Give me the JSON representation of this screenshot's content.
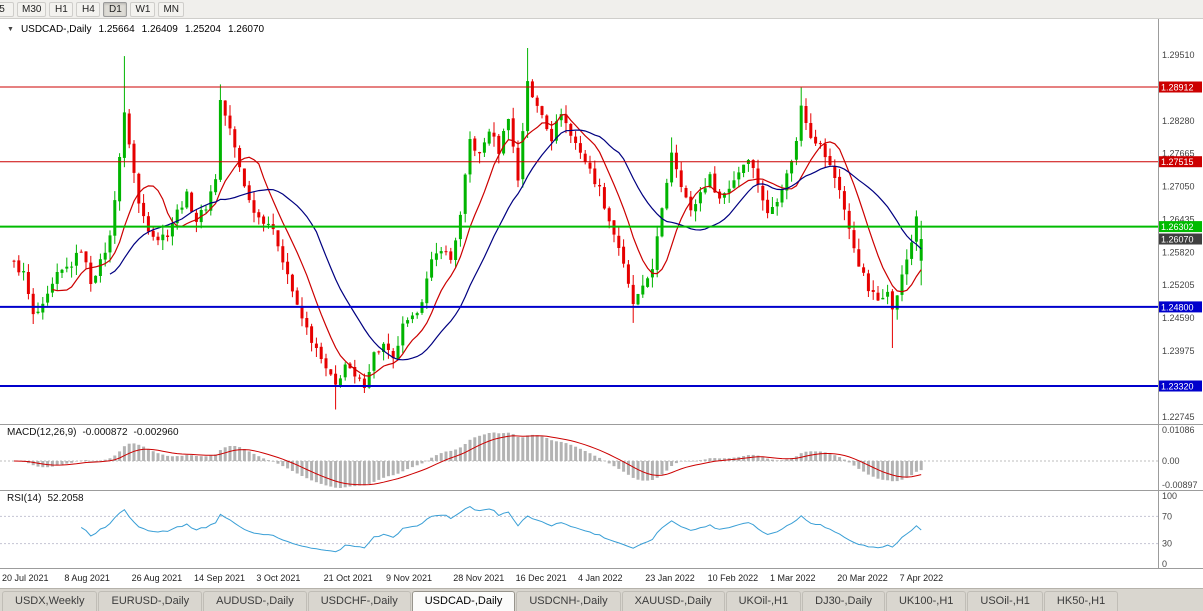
{
  "toolbar": {
    "timeframes": [
      {
        "label": "5",
        "active": false,
        "partial": true
      },
      {
        "label": "M30",
        "active": false
      },
      {
        "label": "H1",
        "active": false
      },
      {
        "label": "H4",
        "active": false
      },
      {
        "label": "D1",
        "active": true
      },
      {
        "label": "W1",
        "active": false
      },
      {
        "label": "MN",
        "active": false
      }
    ]
  },
  "chart_data": {
    "type": "candlestick",
    "symbol_title": "USDCAD-,Daily",
    "title_icon": "▼",
    "ohlc_display": {
      "open": "1.25664",
      "high": "1.26409",
      "low": "1.25204",
      "close": "1.26070"
    },
    "ohlc_current": {
      "open": 1.25664,
      "high": 1.26409,
      "low": 1.25204,
      "close": 1.2607
    },
    "num_bars": 190,
    "y_ticks": [
      1.2951,
      1.2828,
      1.27665,
      1.2705,
      1.26435,
      1.2582,
      1.25205,
      1.2459,
      1.23975,
      1.2336,
      1.22745
    ],
    "levels": [
      {
        "price": 1.28912,
        "label": "1.28912",
        "color": "#cc0000",
        "width": 1
      },
      {
        "price": 1.27515,
        "label": "1.27515",
        "color": "#cc0000",
        "width": 1
      },
      {
        "price": 1.26302,
        "label": "1.26302",
        "color": "#00bb00",
        "width": 2
      },
      {
        "price": 1.248,
        "label": "1.24800",
        "color": "#0000cc",
        "width": 2
      },
      {
        "price": 1.2332,
        "label": "1.23320",
        "color": "#0000cc",
        "width": 2
      }
    ],
    "current_price_label": {
      "value": 1.2607,
      "label": "1.26070",
      "bg": "#3f3f3f"
    },
    "x_labels": [
      {
        "text": "20 Jul 2021",
        "day": 0
      },
      {
        "text": "8 Aug 2021",
        "day": 13
      },
      {
        "text": "26 Aug 2021",
        "day": 27
      },
      {
        "text": "14 Sep 2021",
        "day": 40
      },
      {
        "text": "3 Oct 2021",
        "day": 53
      },
      {
        "text": "21 Oct 2021",
        "day": 67
      },
      {
        "text": "9 Nov 2021",
        "day": 80
      },
      {
        "text": "28 Nov 2021",
        "day": 94
      },
      {
        "text": "16 Dec 2021",
        "day": 107
      },
      {
        "text": "4 Jan 2022",
        "day": 120
      },
      {
        "text": "23 Jan 2022",
        "day": 134
      },
      {
        "text": "10 Feb 2022",
        "day": 147
      },
      {
        "text": "1 Mar 2022",
        "day": 160
      },
      {
        "text": "20 Mar 2022",
        "day": 174
      },
      {
        "text": "7 Apr 2022",
        "day": 187
      }
    ],
    "close_path_anchors": [
      [
        0,
        1.256
      ],
      [
        2,
        1.2542
      ],
      [
        4,
        1.2462
      ],
      [
        6,
        1.2478
      ],
      [
        9,
        1.2538
      ],
      [
        12,
        1.256
      ],
      [
        14,
        1.2588
      ],
      [
        16,
        1.2528
      ],
      [
        18,
        1.2562
      ],
      [
        20,
        1.261
      ],
      [
        22,
        1.2762
      ],
      [
        23,
        1.2838
      ],
      [
        24,
        1.2788
      ],
      [
        26,
        1.2672
      ],
      [
        28,
        1.2628
      ],
      [
        30,
        1.2608
      ],
      [
        32,
        1.2618
      ],
      [
        34,
        1.2658
      ],
      [
        36,
        1.2688
      ],
      [
        38,
        1.2642
      ],
      [
        40,
        1.2668
      ],
      [
        42,
        1.2722
      ],
      [
        43,
        1.2866
      ],
      [
        45,
        1.281
      ],
      [
        47,
        1.2742
      ],
      [
        49,
        1.2678
      ],
      [
        51,
        1.2648
      ],
      [
        53,
        1.2638
      ],
      [
        55,
        1.2598
      ],
      [
        57,
        1.2542
      ],
      [
        59,
        1.2478
      ],
      [
        61,
        1.2438
      ],
      [
        63,
        1.2398
      ],
      [
        65,
        1.2362
      ],
      [
        67,
        1.2332
      ],
      [
        69,
        1.2372
      ],
      [
        71,
        1.2346
      ],
      [
        73,
        1.2336
      ],
      [
        75,
        1.2392
      ],
      [
        77,
        1.2408
      ],
      [
        79,
        1.2378
      ],
      [
        81,
        1.2442
      ],
      [
        83,
        1.2456
      ],
      [
        85,
        1.2496
      ],
      [
        87,
        1.2562
      ],
      [
        89,
        1.2592
      ],
      [
        91,
        1.2568
      ],
      [
        93,
        1.2648
      ],
      [
        95,
        1.2792
      ],
      [
        97,
        1.2762
      ],
      [
        99,
        1.2812
      ],
      [
        101,
        1.2772
      ],
      [
        103,
        1.2838
      ],
      [
        105,
        1.2718
      ],
      [
        107,
        1.2905
      ],
      [
        108,
        1.2868
      ],
      [
        110,
        1.2842
      ],
      [
        112,
        1.2796
      ],
      [
        114,
        1.2846
      ],
      [
        116,
        1.28
      ],
      [
        118,
        1.2772
      ],
      [
        120,
        1.2734
      ],
      [
        122,
        1.27
      ],
      [
        124,
        1.2642
      ],
      [
        126,
        1.2592
      ],
      [
        128,
        1.2518
      ],
      [
        129,
        1.2486
      ],
      [
        131,
        1.2512
      ],
      [
        133,
        1.2556
      ],
      [
        135,
        1.2658
      ],
      [
        137,
        1.2772
      ],
      [
        139,
        1.2712
      ],
      [
        141,
        1.2656
      ],
      [
        143,
        1.2694
      ],
      [
        145,
        1.2722
      ],
      [
        147,
        1.2682
      ],
      [
        149,
        1.2704
      ],
      [
        151,
        1.2734
      ],
      [
        153,
        1.2762
      ],
      [
        155,
        1.2712
      ],
      [
        157,
        1.2652
      ],
      [
        159,
        1.2684
      ],
      [
        161,
        1.2726
      ],
      [
        163,
        1.2788
      ],
      [
        164,
        1.2858
      ],
      [
        166,
        1.2802
      ],
      [
        168,
        1.2782
      ],
      [
        170,
        1.2742
      ],
      [
        172,
        1.2702
      ],
      [
        174,
        1.2622
      ],
      [
        176,
        1.2562
      ],
      [
        178,
        1.2512
      ],
      [
        180,
        1.2492
      ],
      [
        182,
        1.2516
      ],
      [
        183,
        1.2472
      ],
      [
        185,
        1.2536
      ],
      [
        187,
        1.2602
      ],
      [
        188,
        1.2652
      ],
      [
        189,
        1.2607
      ]
    ],
    "wick_spikes": {
      "4": {
        "l": 1.2448
      },
      "23": {
        "h": 1.2949
      },
      "43": {
        "h": 1.2896
      },
      "67": {
        "l": 1.2288
      },
      "107": {
        "h": 1.2964
      },
      "129": {
        "l": 1.245
      },
      "137": {
        "h": 1.2797
      },
      "164": {
        "h": 1.289
      },
      "183": {
        "l": 1.2403
      }
    },
    "colors": {
      "up": "#00b400",
      "down": "#e60000"
    },
    "ma": [
      {
        "period": 9,
        "color": "#cc0000"
      },
      {
        "period": 21,
        "color": "#000080"
      }
    ],
    "macd": {
      "label": "MACD(12,26,9)",
      "value1": "-0.000872",
      "value2": "-0.002960",
      "axis_labels": [
        "0.01086",
        "0.00",
        "-0.00897"
      ],
      "hist_color": "#b3b3b3",
      "signal_color": "#cc0000"
    },
    "rsi": {
      "label": "RSI(14)",
      "value": "52.2058",
      "axis_labels": [
        "100",
        "70",
        "30",
        "0"
      ],
      "levels": [
        70,
        30
      ],
      "color": "#3a9fd6"
    }
  },
  "tabs": [
    {
      "label": "USDX,Weekly",
      "active": false
    },
    {
      "label": "EURUSD-,Daily",
      "active": false
    },
    {
      "label": "AUDUSD-,Daily",
      "active": false
    },
    {
      "label": "USDCHF-,Daily",
      "active": false
    },
    {
      "label": "USDCAD-,Daily",
      "active": true
    },
    {
      "label": "USDCNH-,Daily",
      "active": false
    },
    {
      "label": "XAUUSD-,Daily",
      "active": false
    },
    {
      "label": "UKOil-,H1",
      "active": false
    },
    {
      "label": "DJ30-,Daily",
      "active": false
    },
    {
      "label": "UK100-,H1",
      "active": false
    },
    {
      "label": "USOil-,H1",
      "active": false
    },
    {
      "label": "HK50-,H1",
      "active": false
    }
  ]
}
